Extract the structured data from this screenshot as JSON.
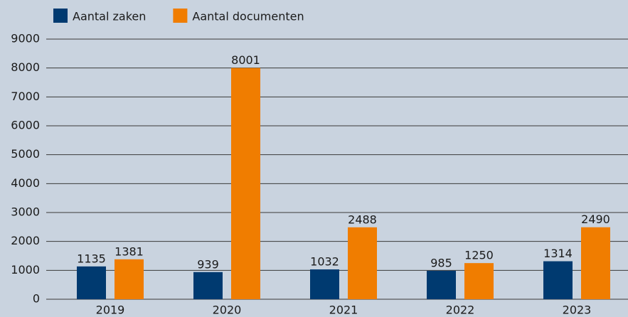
{
  "chart_data": {
    "type": "bar",
    "categories": [
      "2019",
      "2020",
      "2021",
      "2022",
      "2023"
    ],
    "series": [
      {
        "name": "Aantal zaken",
        "color": "#003a70",
        "values": [
          1135,
          939,
          1032,
          985,
          1314
        ]
      },
      {
        "name": "Aantal documenten",
        "color": "#f07d00",
        "values": [
          1381,
          8001,
          2488,
          1250,
          2490
        ]
      }
    ],
    "ylim": [
      0,
      9000
    ],
    "yticks": [
      0,
      1000,
      2000,
      3000,
      4000,
      5000,
      6000,
      7000,
      8000,
      9000
    ],
    "grid": true,
    "legend": "top-left"
  }
}
